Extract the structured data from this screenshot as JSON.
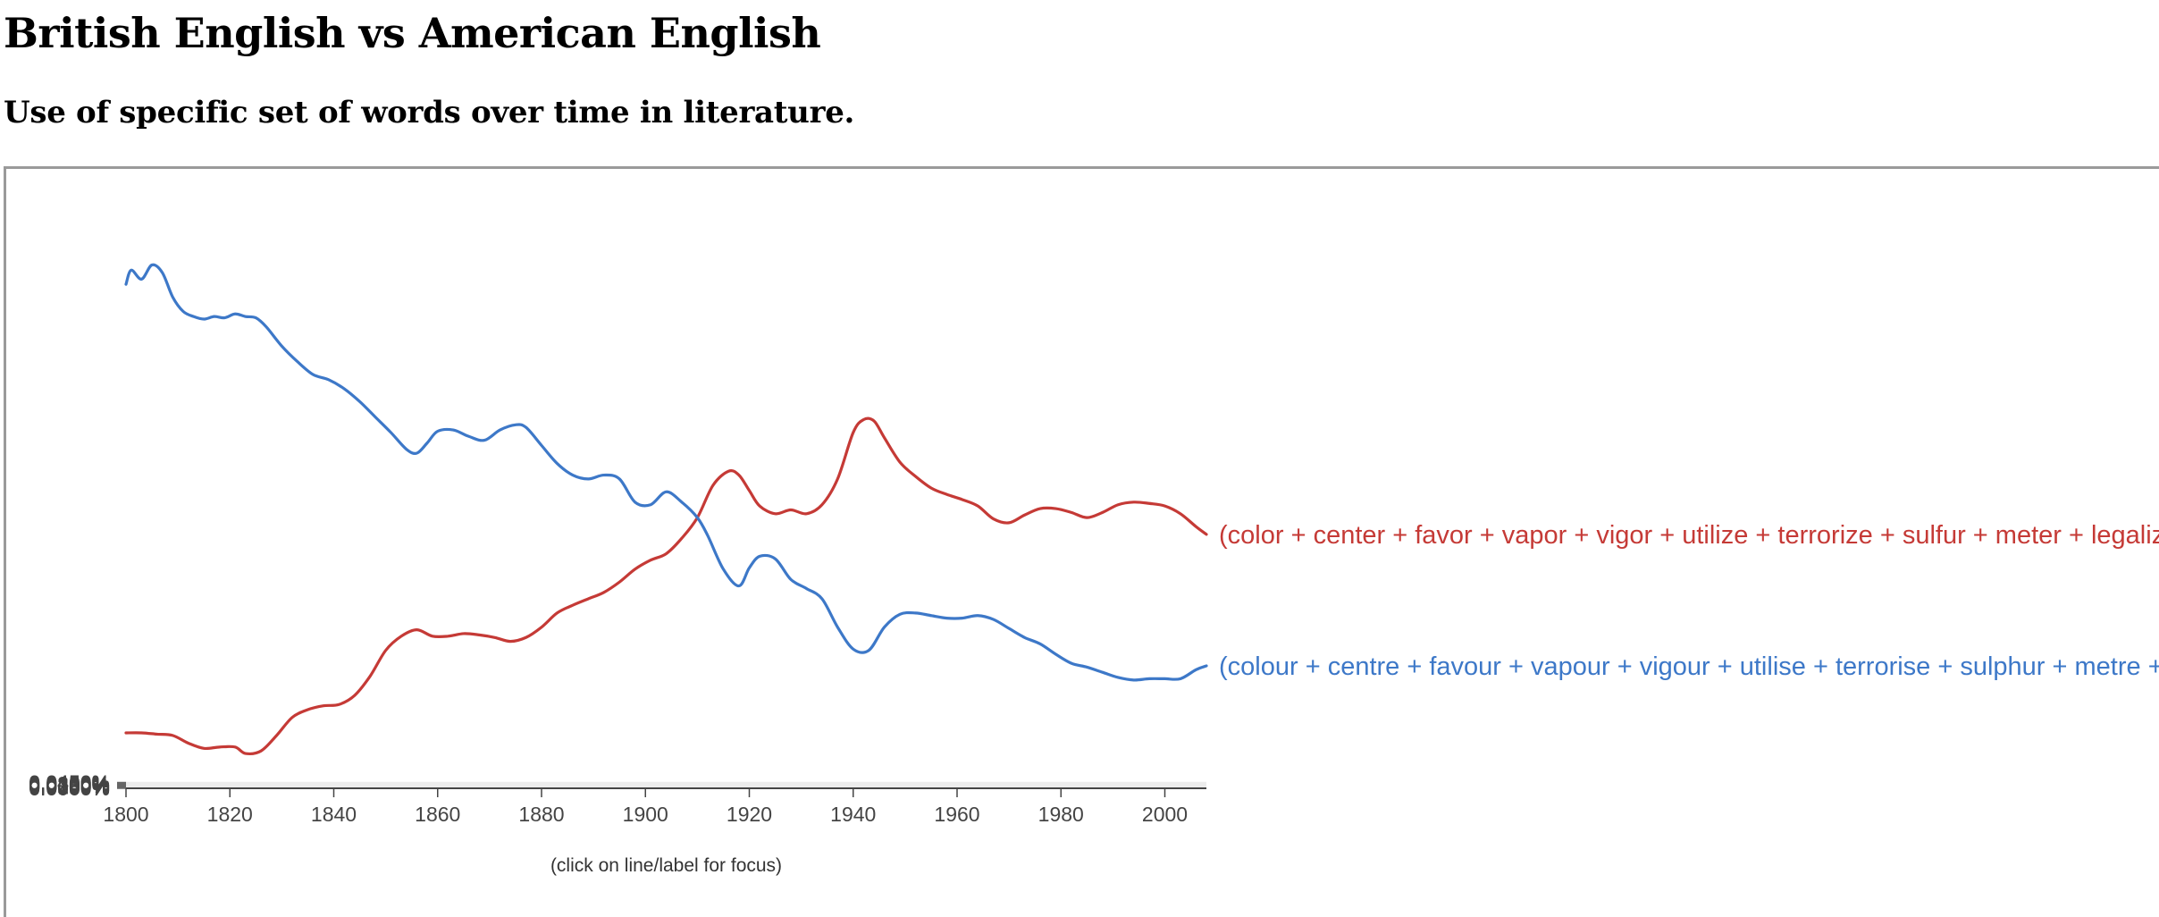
{
  "page": {
    "title": "British English vs American English",
    "subtitle": "Use of specific set of words over time in literature."
  },
  "chart_data": {
    "type": "line",
    "title": "",
    "xlabel": "",
    "ylabel": "",
    "xlim": [
      1800,
      2008
    ],
    "ylim": [
      0,
      0.045
    ],
    "x_ticks": [
      "1800",
      "1820",
      "1840",
      "1860",
      "1880",
      "1900",
      "1920",
      "1940",
      "1960",
      "1980",
      "2000"
    ],
    "y_ticks": [
      "0.0000%",
      "0.0050%",
      "0.0100%",
      "0.0150%",
      "0.0200%",
      "0.0250%",
      "0.0300%",
      "0.0350%",
      "0.0400%",
      "0.0450%"
    ],
    "grid": true,
    "hint": "(click on line/label for focus)",
    "series": [
      {
        "name": "(color + center + favor + vapor + vigor + utilize + terrorize + sulfur + meter + legalize)",
        "color": "#c53a36",
        "x": [
          1800,
          1803,
          1806,
          1809,
          1812,
          1815,
          1818,
          1821,
          1823,
          1826,
          1829,
          1832,
          1835,
          1838,
          1841,
          1844,
          1847,
          1850,
          1853,
          1856,
          1859,
          1862,
          1865,
          1868,
          1871,
          1874,
          1877,
          1880,
          1883,
          1886,
          1889,
          1892,
          1895,
          1898,
          1901,
          1904,
          1907,
          1910,
          1913,
          1916,
          1918,
          1920,
          1922,
          1925,
          1928,
          1931,
          1934,
          1937,
          1940,
          1942,
          1944,
          1946,
          1949,
          1952,
          1955,
          1958,
          1961,
          1964,
          1967,
          1970,
          1973,
          1976,
          1979,
          1982,
          1985,
          1988,
          1991,
          1994,
          1997,
          2000,
          2003,
          2006,
          2008
        ],
        "values": [
          0.0043,
          0.0043,
          0.0042,
          0.0041,
          0.0035,
          0.0031,
          0.0032,
          0.0032,
          0.0027,
          0.0029,
          0.0041,
          0.0055,
          0.0061,
          0.0064,
          0.0065,
          0.0072,
          0.0087,
          0.0107,
          0.0118,
          0.0123,
          0.0118,
          0.0118,
          0.012,
          0.0119,
          0.0117,
          0.0114,
          0.0117,
          0.0125,
          0.0136,
          0.0142,
          0.0147,
          0.0152,
          0.016,
          0.017,
          0.0177,
          0.0182,
          0.0194,
          0.021,
          0.0235,
          0.0246,
          0.0243,
          0.0231,
          0.0219,
          0.0213,
          0.0216,
          0.0213,
          0.022,
          0.024,
          0.0276,
          0.0286,
          0.0285,
          0.0272,
          0.0253,
          0.0242,
          0.0233,
          0.0228,
          0.0224,
          0.0219,
          0.0209,
          0.0206,
          0.0212,
          0.0217,
          0.0217,
          0.0214,
          0.021,
          0.0214,
          0.022,
          0.0222,
          0.0221,
          0.0219,
          0.0213,
          0.0203,
          0.0197
        ]
      },
      {
        "name": "(colour + centre + favour + vapour + vigour + utilise + terrorise + sulphur + metre + legalise)",
        "color": "#3d78c8",
        "x": [
          1800,
          1801,
          1803,
          1805,
          1807,
          1809,
          1811,
          1813,
          1815,
          1817,
          1819,
          1821,
          1823,
          1825,
          1827,
          1830,
          1833,
          1836,
          1839,
          1842,
          1845,
          1848,
          1851,
          1854,
          1856,
          1858,
          1860,
          1863,
          1866,
          1869,
          1872,
          1875,
          1877,
          1880,
          1883,
          1886,
          1889,
          1892,
          1895,
          1898,
          1901,
          1904,
          1907,
          1910,
          1912,
          1915,
          1918,
          1920,
          1922,
          1925,
          1928,
          1931,
          1934,
          1937,
          1940,
          1943,
          1946,
          1949,
          1952,
          1955,
          1958,
          1961,
          1964,
          1967,
          1970,
          1973,
          1976,
          1979,
          1982,
          1985,
          1988,
          1991,
          1994,
          1997,
          2000,
          2003,
          2006,
          2008
        ],
        "values": [
          0.0391,
          0.0402,
          0.0395,
          0.0406,
          0.04,
          0.0381,
          0.037,
          0.0366,
          0.0364,
          0.0366,
          0.0365,
          0.0368,
          0.0366,
          0.0365,
          0.0358,
          0.0343,
          0.0331,
          0.0321,
          0.0317,
          0.031,
          0.03,
          0.0288,
          0.0276,
          0.0263,
          0.026,
          0.0268,
          0.0277,
          0.0278,
          0.0273,
          0.027,
          0.0278,
          0.0282,
          0.028,
          0.0266,
          0.0252,
          0.0243,
          0.024,
          0.0243,
          0.024,
          0.0222,
          0.022,
          0.023,
          0.0222,
          0.021,
          0.0196,
          0.017,
          0.0157,
          0.0171,
          0.018,
          0.0178,
          0.0162,
          0.0155,
          0.0147,
          0.0125,
          0.0108,
          0.0107,
          0.0125,
          0.0135,
          0.0136,
          0.0134,
          0.0132,
          0.0132,
          0.0134,
          0.0131,
          0.0124,
          0.0117,
          0.0112,
          0.0104,
          0.0097,
          0.0094,
          0.009,
          0.0086,
          0.0084,
          0.0085,
          0.0085,
          0.0085,
          0.0092,
          0.0095
        ]
      }
    ]
  }
}
